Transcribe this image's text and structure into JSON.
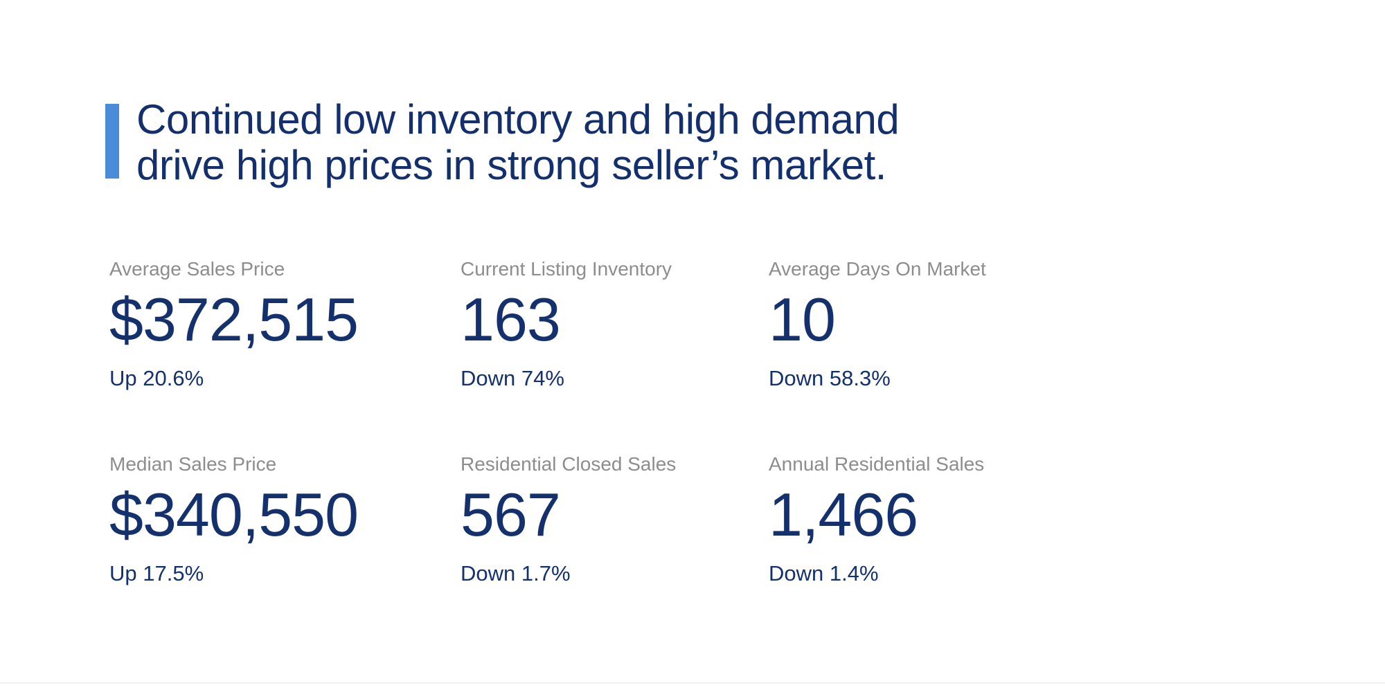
{
  "headline": {
    "line1": "Continued low inventory and high demand",
    "line2": "drive high prices in strong seller’s market."
  },
  "stats": [
    {
      "label": "Average Sales Price",
      "value": "$372,515",
      "change": "Up 20.6%"
    },
    {
      "label": "Current Listing Inventory",
      "value": "163",
      "change": "Down 74%"
    },
    {
      "label": "Average Days On Market",
      "value": "10",
      "change": "Down 58.3%"
    },
    {
      "label": "Median Sales Price",
      "value": "$340,550",
      "change": "Up 17.5%"
    },
    {
      "label": "Residential Closed Sales",
      "value": "567",
      "change": "Down 1.7%"
    },
    {
      "label": "Annual Residential Sales",
      "value": "1,466",
      "change": "Down 1.4%"
    }
  ],
  "colors": {
    "accent_bar": "#4a8cd8",
    "headline_text": "#132f6d",
    "stat_value_text": "#14316e",
    "stat_label_text": "#8d8d8d",
    "background": "#ffffff"
  }
}
